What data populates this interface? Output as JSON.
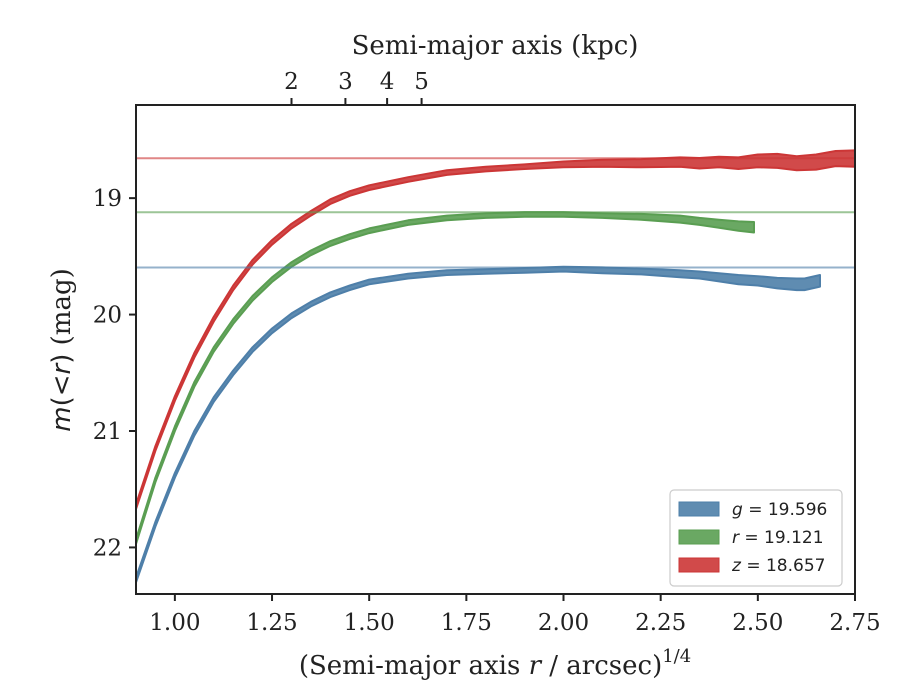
{
  "chart_data": {
    "type": "line",
    "title": "",
    "xlabel": "(Semi-major axis r / arcsec)^1/4",
    "xlabel_parts": {
      "prefix": "(Semi-major axis ",
      "var": "r",
      "suffix": " / arcsec)",
      "sup": "1/4"
    },
    "x2label": "Semi-major axis (kpc)",
    "ylabel": "m(<r) (mag)",
    "ylabel_parts": {
      "m": "m",
      "paren_open": "(",
      "lt": "<",
      "r": "r",
      "paren_close": ")",
      "unit": " (mag)"
    },
    "xlim": [
      0.9,
      2.75
    ],
    "ylim": [
      22.4,
      18.2
    ],
    "y_inverted": true,
    "x_ticks": [
      "1.00",
      "1.25",
      "1.50",
      "1.75",
      "2.00",
      "2.25",
      "2.50",
      "2.75"
    ],
    "y_ticks": [
      "19",
      "20",
      "21",
      "22"
    ],
    "top_ticks": {
      "labels": [
        "2",
        "3",
        "4",
        "5"
      ],
      "kpc": [
        2,
        3,
        4,
        5
      ]
    },
    "x_to_kpc_slope": 0.7,
    "grid": false,
    "legend_position": "lower-right",
    "series": [
      {
        "name": "g = 19.596",
        "color": "#4e7fa9",
        "band_color": "#4e7fa9",
        "asymptote": 19.596,
        "x": [
          0.9,
          0.95,
          1.0,
          1.05,
          1.1,
          1.15,
          1.2,
          1.25,
          1.3,
          1.35,
          1.4,
          1.45,
          1.5,
          1.6,
          1.7,
          1.8,
          1.9,
          2.0,
          2.1,
          2.2,
          2.3,
          2.35,
          2.4,
          2.45,
          2.5,
          2.55,
          2.6,
          2.62,
          2.66
        ],
        "values": [
          22.28,
          21.8,
          21.38,
          21.02,
          20.73,
          20.5,
          20.3,
          20.14,
          20.01,
          19.91,
          19.83,
          19.77,
          19.72,
          19.67,
          19.64,
          19.63,
          19.62,
          19.61,
          19.62,
          19.63,
          19.65,
          19.66,
          19.68,
          19.7,
          19.71,
          19.73,
          19.74,
          19.74,
          19.71
        ],
        "halfwidth": [
          0.02,
          0.02,
          0.02,
          0.02,
          0.02,
          0.02,
          0.02,
          0.02,
          0.02,
          0.02,
          0.02,
          0.02,
          0.02,
          0.02,
          0.02,
          0.02,
          0.02,
          0.02,
          0.025,
          0.025,
          0.03,
          0.03,
          0.035,
          0.04,
          0.04,
          0.045,
          0.05,
          0.05,
          0.05
        ]
      },
      {
        "name": "r = 19.121",
        "color": "#5a9e52",
        "band_color": "#5a9e52",
        "asymptote": 19.121,
        "x": [
          0.9,
          0.95,
          1.0,
          1.05,
          1.1,
          1.15,
          1.2,
          1.25,
          1.3,
          1.35,
          1.4,
          1.45,
          1.5,
          1.6,
          1.7,
          1.8,
          1.9,
          2.0,
          2.1,
          2.2,
          2.3,
          2.35,
          2.4,
          2.45,
          2.49
        ],
        "values": [
          21.95,
          21.42,
          20.98,
          20.6,
          20.3,
          20.06,
          19.86,
          19.7,
          19.57,
          19.47,
          19.39,
          19.33,
          19.28,
          19.21,
          19.17,
          19.15,
          19.14,
          19.14,
          19.15,
          19.16,
          19.18,
          19.2,
          19.22,
          19.24,
          19.25
        ],
        "halfwidth": [
          0.02,
          0.02,
          0.02,
          0.02,
          0.02,
          0.02,
          0.02,
          0.02,
          0.02,
          0.02,
          0.02,
          0.02,
          0.02,
          0.02,
          0.02,
          0.02,
          0.02,
          0.02,
          0.02,
          0.025,
          0.03,
          0.03,
          0.035,
          0.04,
          0.045
        ]
      },
      {
        "name": "z = 18.657",
        "color": "#cc3636",
        "band_color": "#cc3636",
        "asymptote": 18.657,
        "x": [
          0.9,
          0.95,
          1.0,
          1.05,
          1.1,
          1.15,
          1.2,
          1.25,
          1.3,
          1.35,
          1.4,
          1.45,
          1.5,
          1.6,
          1.7,
          1.8,
          1.9,
          2.0,
          2.1,
          2.2,
          2.3,
          2.35,
          2.4,
          2.45,
          2.5,
          2.55,
          2.6,
          2.65,
          2.7,
          2.75
        ],
        "values": [
          21.65,
          21.15,
          20.72,
          20.35,
          20.04,
          19.77,
          19.55,
          19.38,
          19.24,
          19.13,
          19.03,
          18.96,
          18.91,
          18.84,
          18.78,
          18.75,
          18.73,
          18.71,
          18.7,
          18.7,
          18.69,
          18.7,
          18.69,
          18.7,
          18.68,
          18.68,
          18.7,
          18.69,
          18.66,
          18.66
        ],
        "halfwidth": [
          0.02,
          0.02,
          0.02,
          0.02,
          0.02,
          0.02,
          0.02,
          0.02,
          0.02,
          0.02,
          0.02,
          0.02,
          0.02,
          0.02,
          0.02,
          0.02,
          0.02,
          0.025,
          0.03,
          0.035,
          0.04,
          0.045,
          0.045,
          0.05,
          0.055,
          0.06,
          0.06,
          0.065,
          0.065,
          0.07
        ]
      }
    ],
    "legend": [
      {
        "var": "g",
        "rest": " = 19.596",
        "color": "#4e7fa9"
      },
      {
        "var": "r",
        "rest": " = 19.121",
        "color": "#5a9e52"
      },
      {
        "var": "z",
        "rest": " = 18.657",
        "color": "#cc3636"
      }
    ]
  }
}
